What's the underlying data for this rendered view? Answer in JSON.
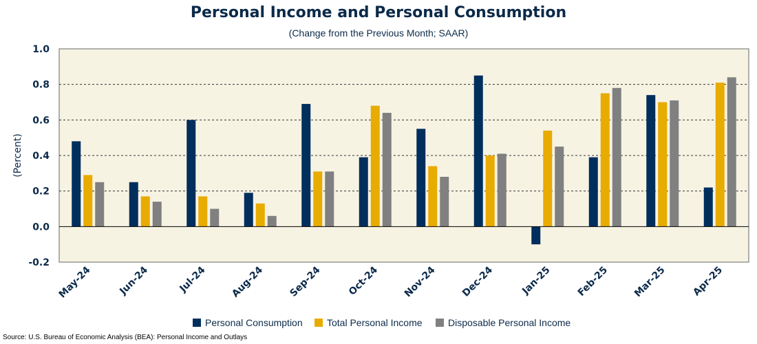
{
  "chart_data": {
    "type": "bar",
    "title": "Personal Income and Personal Consumption",
    "subtitle": "(Change from the Previous Month; SAAR)",
    "ylabel": "(Percent)",
    "xlabel": "",
    "ylim": [
      -0.2,
      1.0
    ],
    "yticks": [
      "-0.2",
      "0.0",
      "0.2",
      "0.4",
      "0.6",
      "0.8",
      "1.0"
    ],
    "yticks_values": [
      -0.2,
      0.0,
      0.2,
      0.4,
      0.6,
      0.8,
      1.0
    ],
    "grid": true,
    "legend_position": "bottom",
    "categories": [
      "May-24",
      "Jun-24",
      "Jul-24",
      "Aug-24",
      "Sep-24",
      "Oct-24",
      "Nov-24",
      "Dec-24",
      "Jan-25",
      "Feb-25",
      "Mar-25",
      "Apr-25"
    ],
    "series": [
      {
        "name": "Personal Consumption",
        "color": "#002e5d",
        "values": [
          0.48,
          0.25,
          0.6,
          0.19,
          0.69,
          0.39,
          0.55,
          0.85,
          -0.1,
          0.39,
          0.74,
          0.22
        ]
      },
      {
        "name": "Total Personal Income",
        "color": "#e8ab00",
        "values": [
          0.29,
          0.17,
          0.17,
          0.13,
          0.31,
          0.68,
          0.34,
          0.4,
          0.54,
          0.75,
          0.7,
          0.81
        ]
      },
      {
        "name": "Disposable Personal Income",
        "color": "#808080",
        "values": [
          0.25,
          0.14,
          0.1,
          0.06,
          0.31,
          0.64,
          0.28,
          0.41,
          0.45,
          0.78,
          0.71,
          0.84
        ]
      }
    ]
  },
  "source": "Source: U.S. Bureau of Economic Analysis (BEA): Personal Income and Outlays",
  "colors": {
    "plot_background": "#f7f3e3",
    "axis_text": "#0b2a4a"
  }
}
